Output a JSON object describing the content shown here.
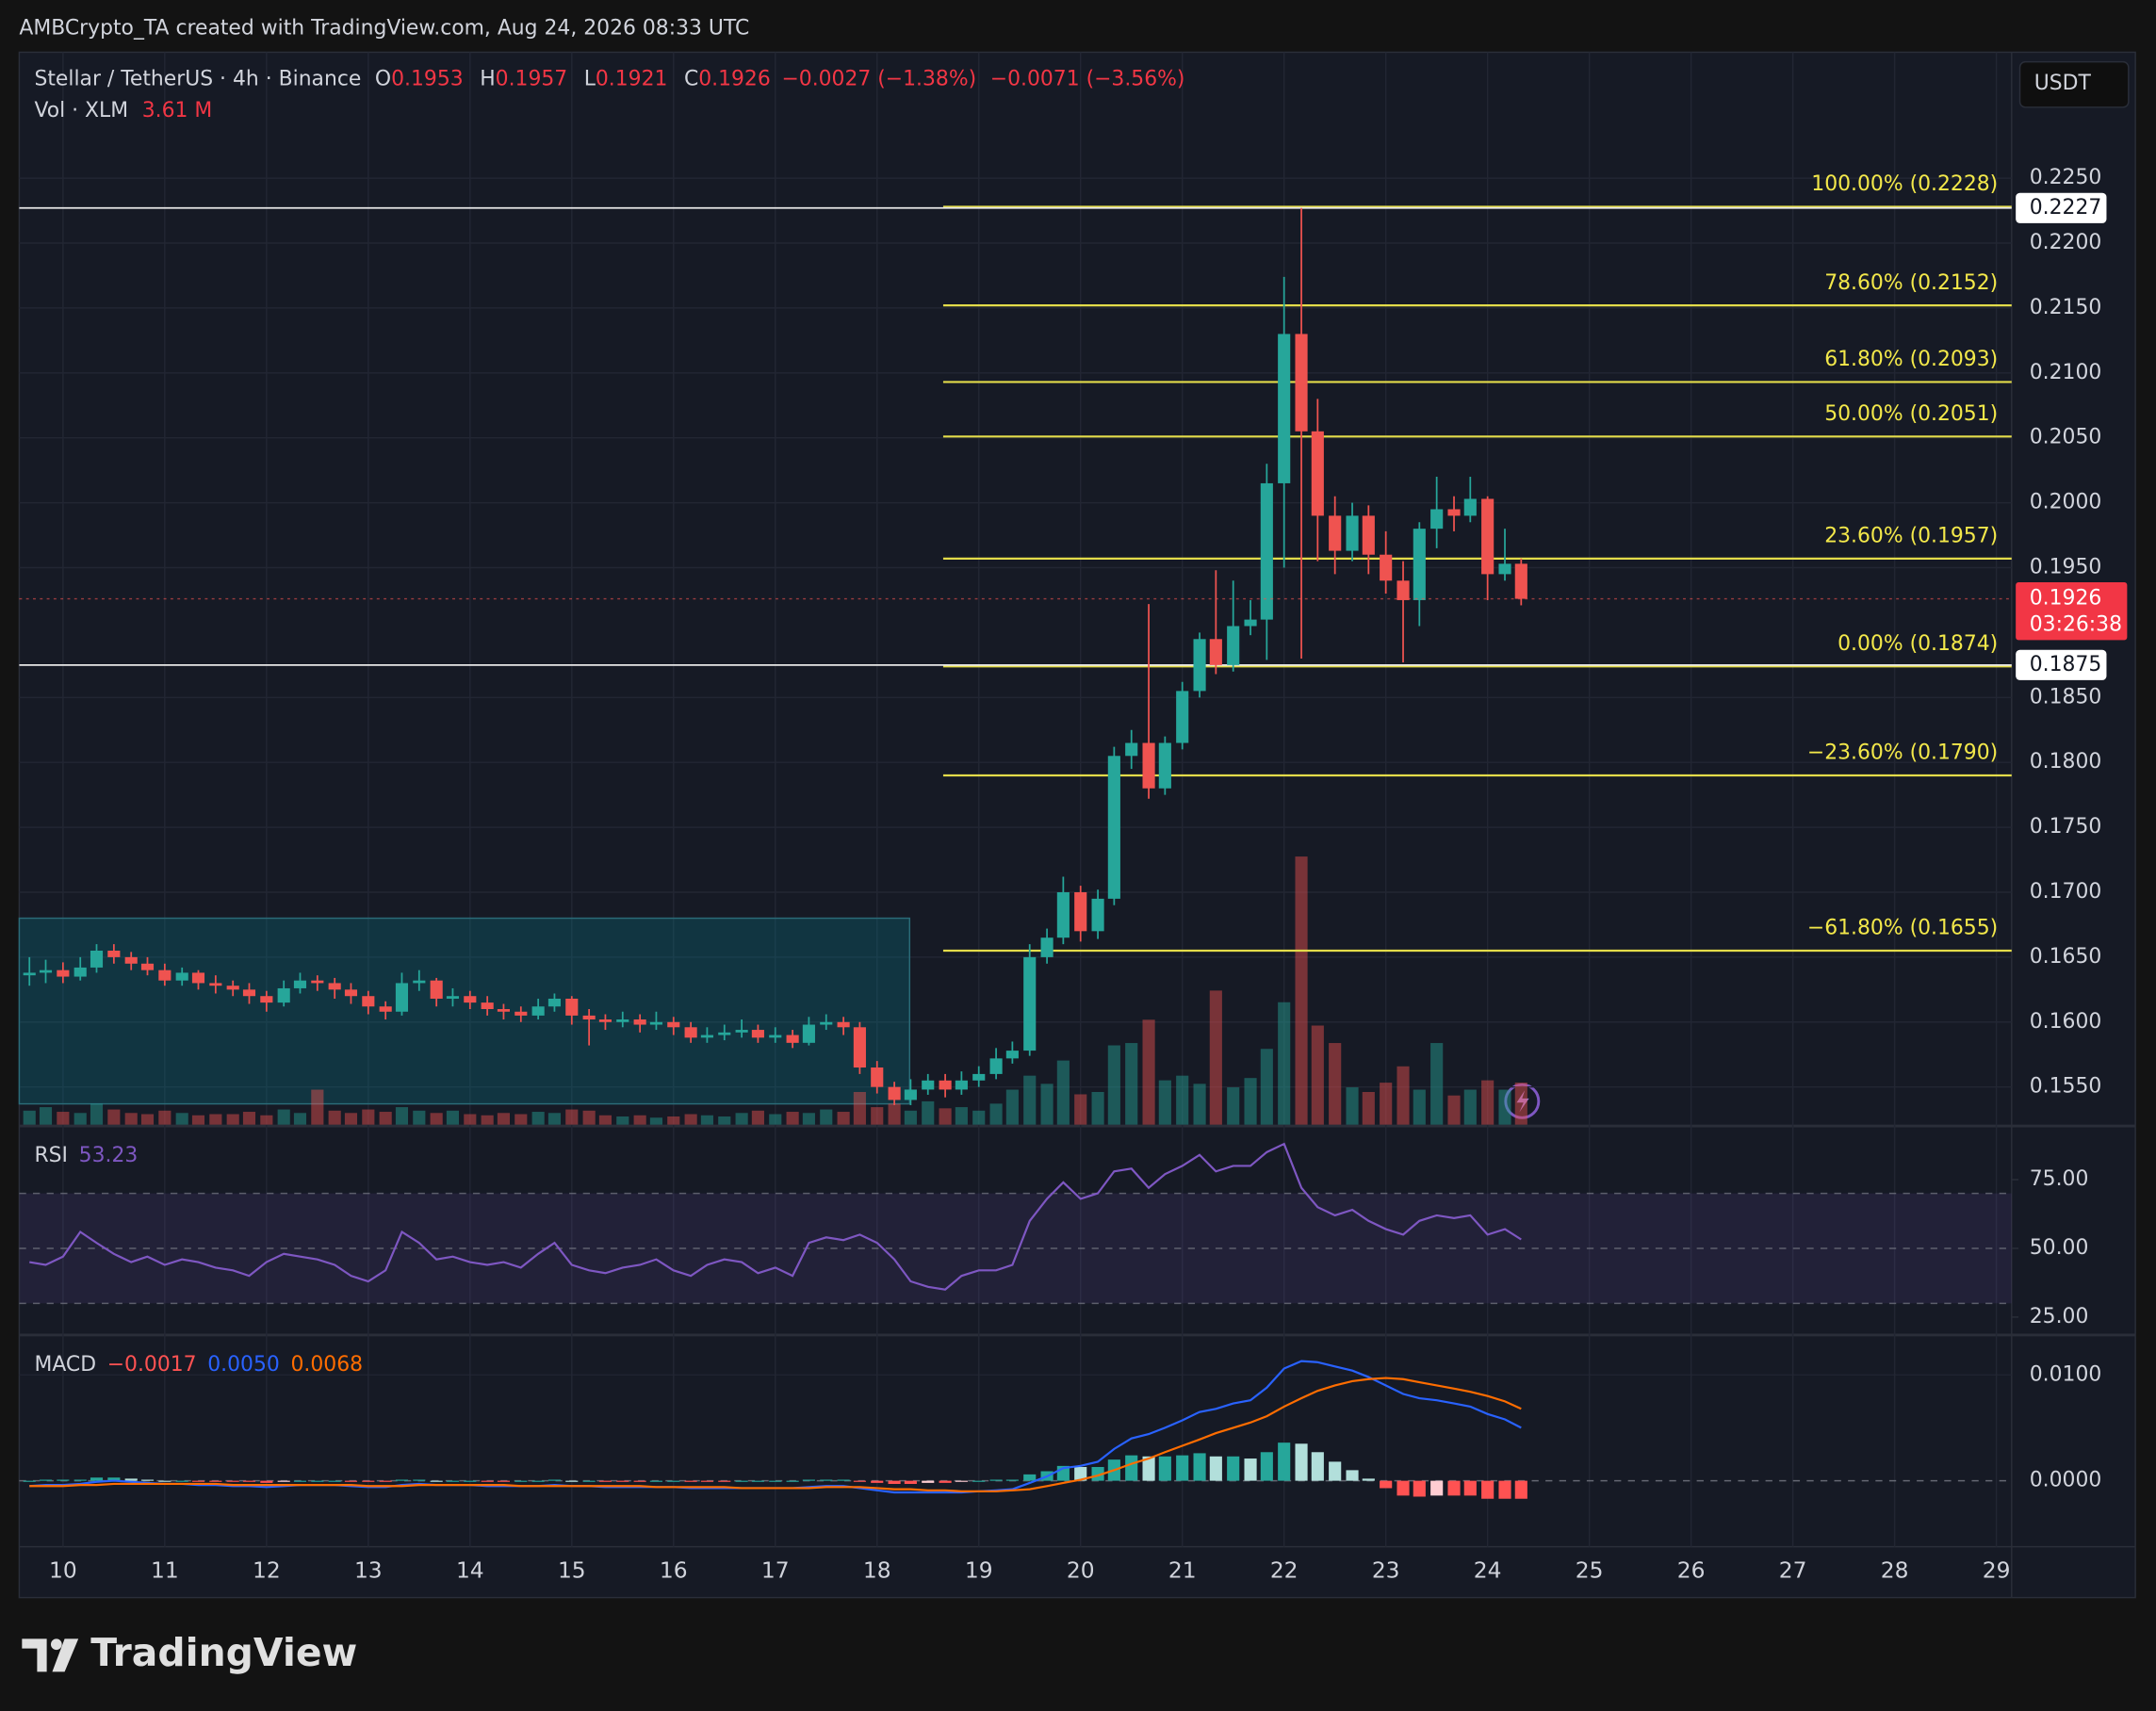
{
  "header": {
    "credit": "AMBCrypto_TA created with TradingView.com, Aug 24, 2026 08:33 UTC",
    "symbol": "Stellar / TetherUS · 4h · Binance",
    "ohlc": [
      {
        "key": "O",
        "value": "0.1953"
      },
      {
        "key": "H",
        "value": "0.1957"
      },
      {
        "key": "L",
        "value": "0.1921"
      },
      {
        "key": "C",
        "value": "0.1926"
      }
    ],
    "change": "−0.0027 (−1.38%)",
    "change_day": "−0.0071 (−3.56%)",
    "currency": "USDT"
  },
  "footer": {
    "brand": "TradingView"
  },
  "chart_data": {
    "type": "candlestick",
    "up_color": "#26a69a",
    "down_color": "#ef5350",
    "grid": true,
    "x": [
      9.67,
      9.83,
      10,
      10.17,
      10.33,
      10.5,
      10.67,
      10.83,
      11,
      11.17,
      11.33,
      11.5,
      11.67,
      11.83,
      12,
      12.17,
      12.33,
      12.5,
      12.67,
      12.83,
      13,
      13.17,
      13.33,
      13.5,
      13.67,
      13.83,
      14,
      14.17,
      14.33,
      14.5,
      14.67,
      14.83,
      15,
      15.17,
      15.33,
      15.5,
      15.67,
      15.83,
      16,
      16.17,
      16.33,
      16.5,
      16.67,
      16.83,
      17,
      17.17,
      17.33,
      17.5,
      17.67,
      17.83,
      18,
      18.17,
      18.33,
      18.5,
      18.67,
      18.83,
      19,
      19.17,
      19.33,
      19.5,
      19.67,
      19.83,
      20,
      20.17,
      20.33,
      20.5,
      20.67,
      20.83,
      21,
      21.17,
      21.33,
      21.5,
      21.67,
      21.83,
      22,
      22.17,
      22.33,
      22.5,
      22.67,
      22.83,
      23,
      23.17,
      23.33,
      23.5,
      23.67,
      23.83,
      24,
      24.17,
      24.33
    ],
    "xlim": [
      9.57,
      29.15
    ],
    "xticks": [
      10,
      11,
      12,
      13,
      14,
      15,
      16,
      17,
      18,
      19,
      20,
      21,
      22,
      23,
      24,
      25,
      26,
      27,
      28,
      29
    ],
    "ohlc": [
      [
        0.1636,
        0.165,
        0.1628,
        0.1638
      ],
      [
        0.1638,
        0.1648,
        0.163,
        0.164
      ],
      [
        0.164,
        0.1646,
        0.163,
        0.1635
      ],
      [
        0.1635,
        0.165,
        0.1632,
        0.1642
      ],
      [
        0.1642,
        0.166,
        0.1638,
        0.1655
      ],
      [
        0.1655,
        0.166,
        0.1645,
        0.165
      ],
      [
        0.165,
        0.1654,
        0.164,
        0.1645
      ],
      [
        0.1645,
        0.165,
        0.1636,
        0.164
      ],
      [
        0.164,
        0.1645,
        0.1628,
        0.1632
      ],
      [
        0.1632,
        0.1642,
        0.1628,
        0.1638
      ],
      [
        0.1638,
        0.164,
        0.1625,
        0.163
      ],
      [
        0.163,
        0.1636,
        0.1622,
        0.1628
      ],
      [
        0.1628,
        0.1632,
        0.162,
        0.1625
      ],
      [
        0.1625,
        0.163,
        0.1614,
        0.162
      ],
      [
        0.162,
        0.1624,
        0.1608,
        0.1615
      ],
      [
        0.1615,
        0.1632,
        0.1612,
        0.1626
      ],
      [
        0.1626,
        0.1638,
        0.1622,
        0.1632
      ],
      [
        0.1632,
        0.1636,
        0.1624,
        0.163
      ],
      [
        0.163,
        0.1634,
        0.1618,
        0.1625
      ],
      [
        0.1625,
        0.163,
        0.1614,
        0.162
      ],
      [
        0.162,
        0.1624,
        0.1606,
        0.1612
      ],
      [
        0.1612,
        0.1616,
        0.1602,
        0.1608
      ],
      [
        0.1608,
        0.1638,
        0.1605,
        0.163
      ],
      [
        0.163,
        0.164,
        0.1624,
        0.1632
      ],
      [
        0.1632,
        0.1634,
        0.1612,
        0.1618
      ],
      [
        0.1618,
        0.1626,
        0.1612,
        0.162
      ],
      [
        0.162,
        0.1624,
        0.161,
        0.1615
      ],
      [
        0.1615,
        0.162,
        0.1605,
        0.161
      ],
      [
        0.161,
        0.1614,
        0.1602,
        0.1608
      ],
      [
        0.1608,
        0.1612,
        0.16,
        0.1605
      ],
      [
        0.1605,
        0.1618,
        0.1602,
        0.1612
      ],
      [
        0.1612,
        0.1622,
        0.1608,
        0.1618
      ],
      [
        0.1618,
        0.162,
        0.1598,
        0.1605
      ],
      [
        0.1605,
        0.161,
        0.1582,
        0.1602
      ],
      [
        0.1602,
        0.1606,
        0.1594,
        0.16
      ],
      [
        0.16,
        0.1608,
        0.1596,
        0.1602
      ],
      [
        0.1602,
        0.1606,
        0.1592,
        0.1598
      ],
      [
        0.1598,
        0.1608,
        0.1594,
        0.16
      ],
      [
        0.16,
        0.1604,
        0.159,
        0.1596
      ],
      [
        0.1596,
        0.16,
        0.1584,
        0.1588
      ],
      [
        0.1588,
        0.1596,
        0.1584,
        0.159
      ],
      [
        0.159,
        0.1598,
        0.1586,
        0.1592
      ],
      [
        0.1592,
        0.1602,
        0.1588,
        0.1594
      ],
      [
        0.1594,
        0.1598,
        0.1584,
        0.1588
      ],
      [
        0.1588,
        0.1596,
        0.1584,
        0.159
      ],
      [
        0.159,
        0.1594,
        0.158,
        0.1584
      ],
      [
        0.1584,
        0.1604,
        0.1582,
        0.1598
      ],
      [
        0.1598,
        0.1606,
        0.1594,
        0.16
      ],
      [
        0.16,
        0.1604,
        0.159,
        0.1596
      ],
      [
        0.1596,
        0.16,
        0.156,
        0.1565
      ],
      [
        0.1565,
        0.157,
        0.1545,
        0.155
      ],
      [
        0.155,
        0.1554,
        0.1536,
        0.154
      ],
      [
        0.154,
        0.1556,
        0.1536,
        0.1548
      ],
      [
        0.1548,
        0.156,
        0.1544,
        0.1555
      ],
      [
        0.1555,
        0.156,
        0.1542,
        0.1548
      ],
      [
        0.1548,
        0.1562,
        0.1544,
        0.1555
      ],
      [
        0.1555,
        0.1566,
        0.155,
        0.156
      ],
      [
        0.156,
        0.158,
        0.1556,
        0.1572
      ],
      [
        0.1572,
        0.1585,
        0.1568,
        0.1578
      ],
      [
        0.1578,
        0.166,
        0.1574,
        0.165
      ],
      [
        0.165,
        0.1672,
        0.1645,
        0.1665
      ],
      [
        0.1665,
        0.1712,
        0.166,
        0.17
      ],
      [
        0.17,
        0.1705,
        0.1662,
        0.167
      ],
      [
        0.167,
        0.1702,
        0.1664,
        0.1695
      ],
      [
        0.1695,
        0.1812,
        0.169,
        0.1805
      ],
      [
        0.1805,
        0.1825,
        0.1795,
        0.1815
      ],
      [
        0.1815,
        0.1922,
        0.1772,
        0.178
      ],
      [
        0.178,
        0.182,
        0.1775,
        0.1815
      ],
      [
        0.1815,
        0.1862,
        0.181,
        0.1855
      ],
      [
        0.1855,
        0.19,
        0.185,
        0.1895
      ],
      [
        0.1895,
        0.1948,
        0.1868,
        0.1875
      ],
      [
        0.1875,
        0.194,
        0.187,
        0.1905
      ],
      [
        0.1905,
        0.1925,
        0.1898,
        0.191
      ],
      [
        0.191,
        0.203,
        0.1879,
        0.2015
      ],
      [
        0.2015,
        0.2174,
        0.195,
        0.213
      ],
      [
        0.213,
        0.2227,
        0.188,
        0.2055
      ],
      [
        0.2055,
        0.208,
        0.1955,
        0.199
      ],
      [
        0.199,
        0.2005,
        0.1945,
        0.1963
      ],
      [
        0.1963,
        0.2,
        0.1955,
        0.199
      ],
      [
        0.199,
        0.1998,
        0.1945,
        0.196
      ],
      [
        0.196,
        0.1978,
        0.193,
        0.194
      ],
      [
        0.194,
        0.1955,
        0.1877,
        0.1925
      ],
      [
        0.1925,
        0.1985,
        0.1905,
        0.198
      ],
      [
        0.198,
        0.202,
        0.1965,
        0.1995
      ],
      [
        0.1995,
        0.2005,
        0.1978,
        0.199
      ],
      [
        0.199,
        0.202,
        0.1985,
        0.2003
      ],
      [
        0.2003,
        0.2005,
        0.1925,
        0.1945
      ],
      [
        0.1945,
        0.198,
        0.194,
        0.1953
      ],
      [
        0.1953,
        0.1957,
        0.1921,
        0.1926
      ]
    ],
    "ylim": [
      0.1521,
      0.2347
    ],
    "yticks": [
      {
        "value": 0.225,
        "label": "0.2250"
      },
      {
        "value": 0.22,
        "label": "0.2200"
      },
      {
        "value": 0.215,
        "label": "0.2150"
      },
      {
        "value": 0.21,
        "label": "0.2100"
      },
      {
        "value": 0.205,
        "label": "0.2050"
      },
      {
        "value": 0.2,
        "label": "0.2000"
      },
      {
        "value": 0.195,
        "label": "0.1950"
      },
      {
        "value": 0.185,
        "label": "0.1850"
      },
      {
        "value": 0.18,
        "label": "0.1800"
      },
      {
        "value": 0.175,
        "label": "0.1750"
      },
      {
        "value": 0.17,
        "label": "0.1700"
      },
      {
        "value": 0.165,
        "label": "0.1650"
      },
      {
        "value": 0.16,
        "label": "0.1600"
      },
      {
        "value": 0.155,
        "label": "0.1550"
      }
    ],
    "volume": {
      "name": "Vol · XLM",
      "last": "3.61 M",
      "values": [
        1.2,
        1.5,
        1.1,
        1.0,
        1.8,
        1.3,
        1.0,
        0.9,
        1.2,
        1.0,
        0.8,
        0.9,
        0.9,
        1.1,
        0.8,
        1.3,
        1.0,
        3.0,
        1.2,
        1.0,
        1.3,
        1.1,
        1.5,
        1.2,
        1.0,
        1.2,
        0.9,
        0.8,
        1.0,
        0.9,
        1.1,
        1.0,
        1.3,
        1.2,
        0.8,
        0.7,
        0.8,
        0.6,
        0.7,
        0.9,
        0.8,
        0.7,
        1.0,
        1.2,
        0.9,
        1.1,
        1.0,
        1.3,
        1.1,
        2.8,
        1.5,
        1.8,
        1.2,
        2.0,
        1.4,
        1.5,
        1.2,
        1.8,
        3.0,
        4.2,
        3.5,
        5.5,
        2.6,
        2.8,
        6.8,
        7.0,
        9.0,
        3.8,
        4.2,
        3.5,
        11.5,
        3.2,
        4.0,
        6.5,
        10.5,
        23.0,
        8.5,
        7.0,
        3.2,
        2.8,
        3.6,
        5.0,
        3.0,
        7.0,
        2.5,
        3.0,
        3.8,
        3.0,
        3.61
      ]
    },
    "price_lines": [
      0.2227,
      0.1875
    ],
    "last_price": {
      "value": 0.1926,
      "countdown": "03:26:38"
    },
    "range_box": {
      "x": [
        9.57,
        18.32
      ],
      "y": [
        0.1537,
        0.168
      ]
    },
    "fib": {
      "x": 18.65,
      "color": "#e3dc4a",
      "levels": [
        {
          "value": 0.2228,
          "label": "100.00% (0.2228)"
        },
        {
          "value": 0.2152,
          "label": "78.60% (0.2152)"
        },
        {
          "value": 0.2093,
          "label": "61.80% (0.2093)"
        },
        {
          "value": 0.2051,
          "label": "50.00% (0.2051)"
        },
        {
          "value": 0.1957,
          "label": "23.60% (0.1957)"
        },
        {
          "value": 0.1874,
          "label": "0.00% (0.1874)"
        },
        {
          "value": 0.179,
          "label": "−23.60% (0.1790)"
        },
        {
          "value": 0.1655,
          "label": "−61.80% (0.1655)"
        }
      ]
    },
    "rsi": {
      "name": "RSI",
      "last": "53.23",
      "color": "#7e57c2",
      "ylim": [
        19,
        94
      ],
      "yticks": [
        {
          "value": 75,
          "label": "75.00"
        },
        {
          "value": 50,
          "label": "50.00"
        },
        {
          "value": 25,
          "label": "25.00"
        }
      ],
      "bands": [
        30,
        50,
        70
      ],
      "values": [
        45,
        44,
        47,
        56,
        52,
        48,
        45,
        47,
        44,
        46,
        45,
        43,
        42,
        40,
        45,
        48,
        47,
        46,
        44,
        40,
        38,
        42,
        56,
        52,
        46,
        47,
        45,
        44,
        45,
        43,
        48,
        52,
        44,
        42,
        41,
        43,
        44,
        46,
        42,
        40,
        44,
        46,
        45,
        41,
        43,
        40,
        52,
        54,
        53,
        55,
        52,
        46,
        38,
        36,
        35,
        40,
        42,
        42,
        44,
        60,
        68,
        74,
        68,
        70,
        78,
        79,
        72,
        77,
        80,
        84,
        78,
        80,
        80,
        85,
        88,
        72,
        65,
        62,
        64,
        60,
        57,
        55,
        60,
        62,
        61,
        62,
        55,
        57,
        53.23
      ]
    },
    "macd": {
      "name": "MACD",
      "ylim": [
        -0.00623,
        0.01364
      ],
      "yticks": [
        {
          "value": 0.01,
          "label": "0.0100"
        },
        {
          "value": 0,
          "label": "0.0000"
        }
      ],
      "histogram": {
        "last": "−0.0017",
        "values": [
          0,
          0.0001,
          0.0001,
          0.0001,
          0.0003,
          0.0003,
          0.0002,
          0.0001,
          0,
          0,
          -0.0001,
          -0.0001,
          -0.0001,
          -0.0001,
          -0.0002,
          -0.0001,
          0,
          0,
          0,
          -0.0001,
          -0.0001,
          -0.0001,
          0.0001,
          0.0001,
          0,
          0,
          0,
          -0.0001,
          -0.0001,
          0,
          0,
          0.0001,
          0,
          0,
          -0.0001,
          -0.0001,
          -0.0001,
          0,
          0,
          -0.0001,
          -0.0001,
          -0.0001,
          0,
          0,
          0,
          0,
          0.0001,
          0.0001,
          0.0001,
          -0.0001,
          -0.0002,
          -0.0003,
          -0.0003,
          -0.0002,
          -0.0002,
          -0.0001,
          0,
          0.0001,
          0.0001,
          0.0006,
          0.0009,
          0.0014,
          0.0013,
          0.0013,
          0.002,
          0.0024,
          0.0023,
          0.0023,
          0.0024,
          0.0026,
          0.0023,
          0.0023,
          0.0021,
          0.0027,
          0.0036,
          0.0035,
          0.0027,
          0.0018,
          0.001,
          0.0002,
          -0.0007,
          -0.0014,
          -0.0015,
          -0.0014,
          -0.0014,
          -0.0014,
          -0.0017,
          -0.0017,
          -0.0017
        ]
      },
      "series": [
        {
          "color": "#2962ff",
          "last": "0.0050",
          "values": [
            -0.0005,
            -0.0004,
            -0.0004,
            -0.0003,
            -0.0001,
            0,
            -0.0001,
            -0.0002,
            -0.0003,
            -0.0003,
            -0.0004,
            -0.0004,
            -0.0005,
            -0.0005,
            -0.0006,
            -0.0005,
            -0.0004,
            -0.0004,
            -0.0004,
            -0.0005,
            -0.0006,
            -0.0006,
            -0.0004,
            -0.0003,
            -0.0004,
            -0.0004,
            -0.0004,
            -0.0005,
            -0.0005,
            -0.0005,
            -0.0005,
            -0.0004,
            -0.0005,
            -0.0005,
            -0.0006,
            -0.0006,
            -0.0006,
            -0.0006,
            -0.0006,
            -0.0007,
            -0.0007,
            -0.0007,
            -0.0007,
            -0.0007,
            -0.0007,
            -0.0007,
            -0.0006,
            -0.0005,
            -0.0005,
            -0.0007,
            -0.0009,
            -0.0011,
            -0.0011,
            -0.0011,
            -0.0011,
            -0.0011,
            -0.001,
            -0.0009,
            -0.0008,
            -0.0002,
            0.0004,
            0.0012,
            0.0014,
            0.0018,
            0.003,
            0.004,
            0.0044,
            0.005,
            0.0057,
            0.0065,
            0.0068,
            0.0073,
            0.0076,
            0.0088,
            0.0106,
            0.0113,
            0.0112,
            0.0108,
            0.0104,
            0.0098,
            0.009,
            0.0082,
            0.0078,
            0.0076,
            0.0073,
            0.007,
            0.0063,
            0.0058,
            0.005
          ]
        },
        {
          "color": "#ff6d00",
          "last": "0.0068",
          "values": [
            -0.0005,
            -0.0005,
            -0.0005,
            -0.0004,
            -0.0004,
            -0.0003,
            -0.0003,
            -0.0003,
            -0.0003,
            -0.0003,
            -0.0003,
            -0.0003,
            -0.0004,
            -0.0004,
            -0.0004,
            -0.0004,
            -0.0004,
            -0.0004,
            -0.0004,
            -0.0004,
            -0.0005,
            -0.0005,
            -0.0005,
            -0.0004,
            -0.0004,
            -0.0004,
            -0.0004,
            -0.0004,
            -0.0004,
            -0.0005,
            -0.0005,
            -0.0005,
            -0.0005,
            -0.0005,
            -0.0005,
            -0.0005,
            -0.0005,
            -0.0006,
            -0.0006,
            -0.0006,
            -0.0006,
            -0.0006,
            -0.0007,
            -0.0007,
            -0.0007,
            -0.0007,
            -0.0007,
            -0.0006,
            -0.0006,
            -0.0006,
            -0.0007,
            -0.0008,
            -0.0008,
            -0.0009,
            -0.0009,
            -0.001,
            -0.001,
            -0.001,
            -0.0009,
            -0.0008,
            -0.0005,
            -0.0002,
            0.0001,
            0.0005,
            0.001,
            0.0016,
            0.0021,
            0.0027,
            0.0033,
            0.0039,
            0.0045,
            0.005,
            0.0055,
            0.0061,
            0.007,
            0.0078,
            0.0085,
            0.009,
            0.0094,
            0.0096,
            0.0097,
            0.0096,
            0.0093,
            0.009,
            0.0087,
            0.0084,
            0.008,
            0.0075,
            0.0068
          ]
        }
      ]
    }
  }
}
